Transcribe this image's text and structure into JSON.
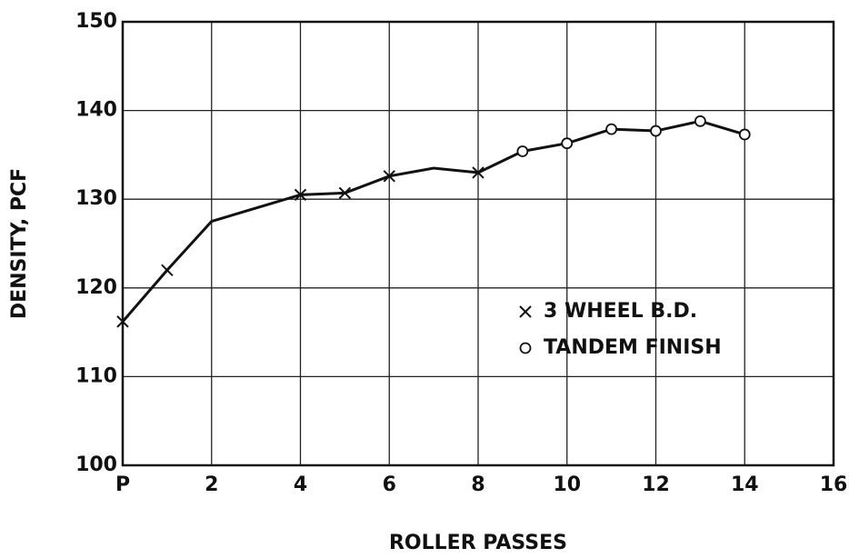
{
  "chart_data": {
    "type": "line",
    "xlabel": "ROLLER PASSES",
    "ylabel": "DENSITY, PCF",
    "xlim": [
      0,
      16
    ],
    "ylim": [
      100,
      150
    ],
    "xticks": [
      {
        "value": 0,
        "label": "P"
      },
      2,
      4,
      6,
      8,
      10,
      12,
      14,
      16
    ],
    "yticks": [
      100,
      110,
      120,
      130,
      140,
      150
    ],
    "grid": true,
    "color": "#111111",
    "legend_position": "right",
    "series": [
      {
        "x": [
          0,
          1,
          2,
          3,
          4,
          5,
          6,
          7,
          8,
          9,
          10,
          11,
          12,
          13,
          14
        ],
        "values": [
          116.2,
          122,
          127.5,
          129,
          130.5,
          130.7,
          132.6,
          133.5,
          133,
          135.4,
          136.3,
          137.9,
          137.7,
          138.8,
          137.3
        ],
        "markers": [
          "x",
          "x",
          null,
          null,
          "x",
          "x",
          "x",
          null,
          "x",
          "o",
          "o",
          "o",
          "o",
          "o",
          "o"
        ]
      }
    ],
    "legend": [
      {
        "label": "3 WHEEL B.D.",
        "marker": "x"
      },
      {
        "label": "TANDEM FINISH",
        "marker": "o"
      }
    ]
  }
}
